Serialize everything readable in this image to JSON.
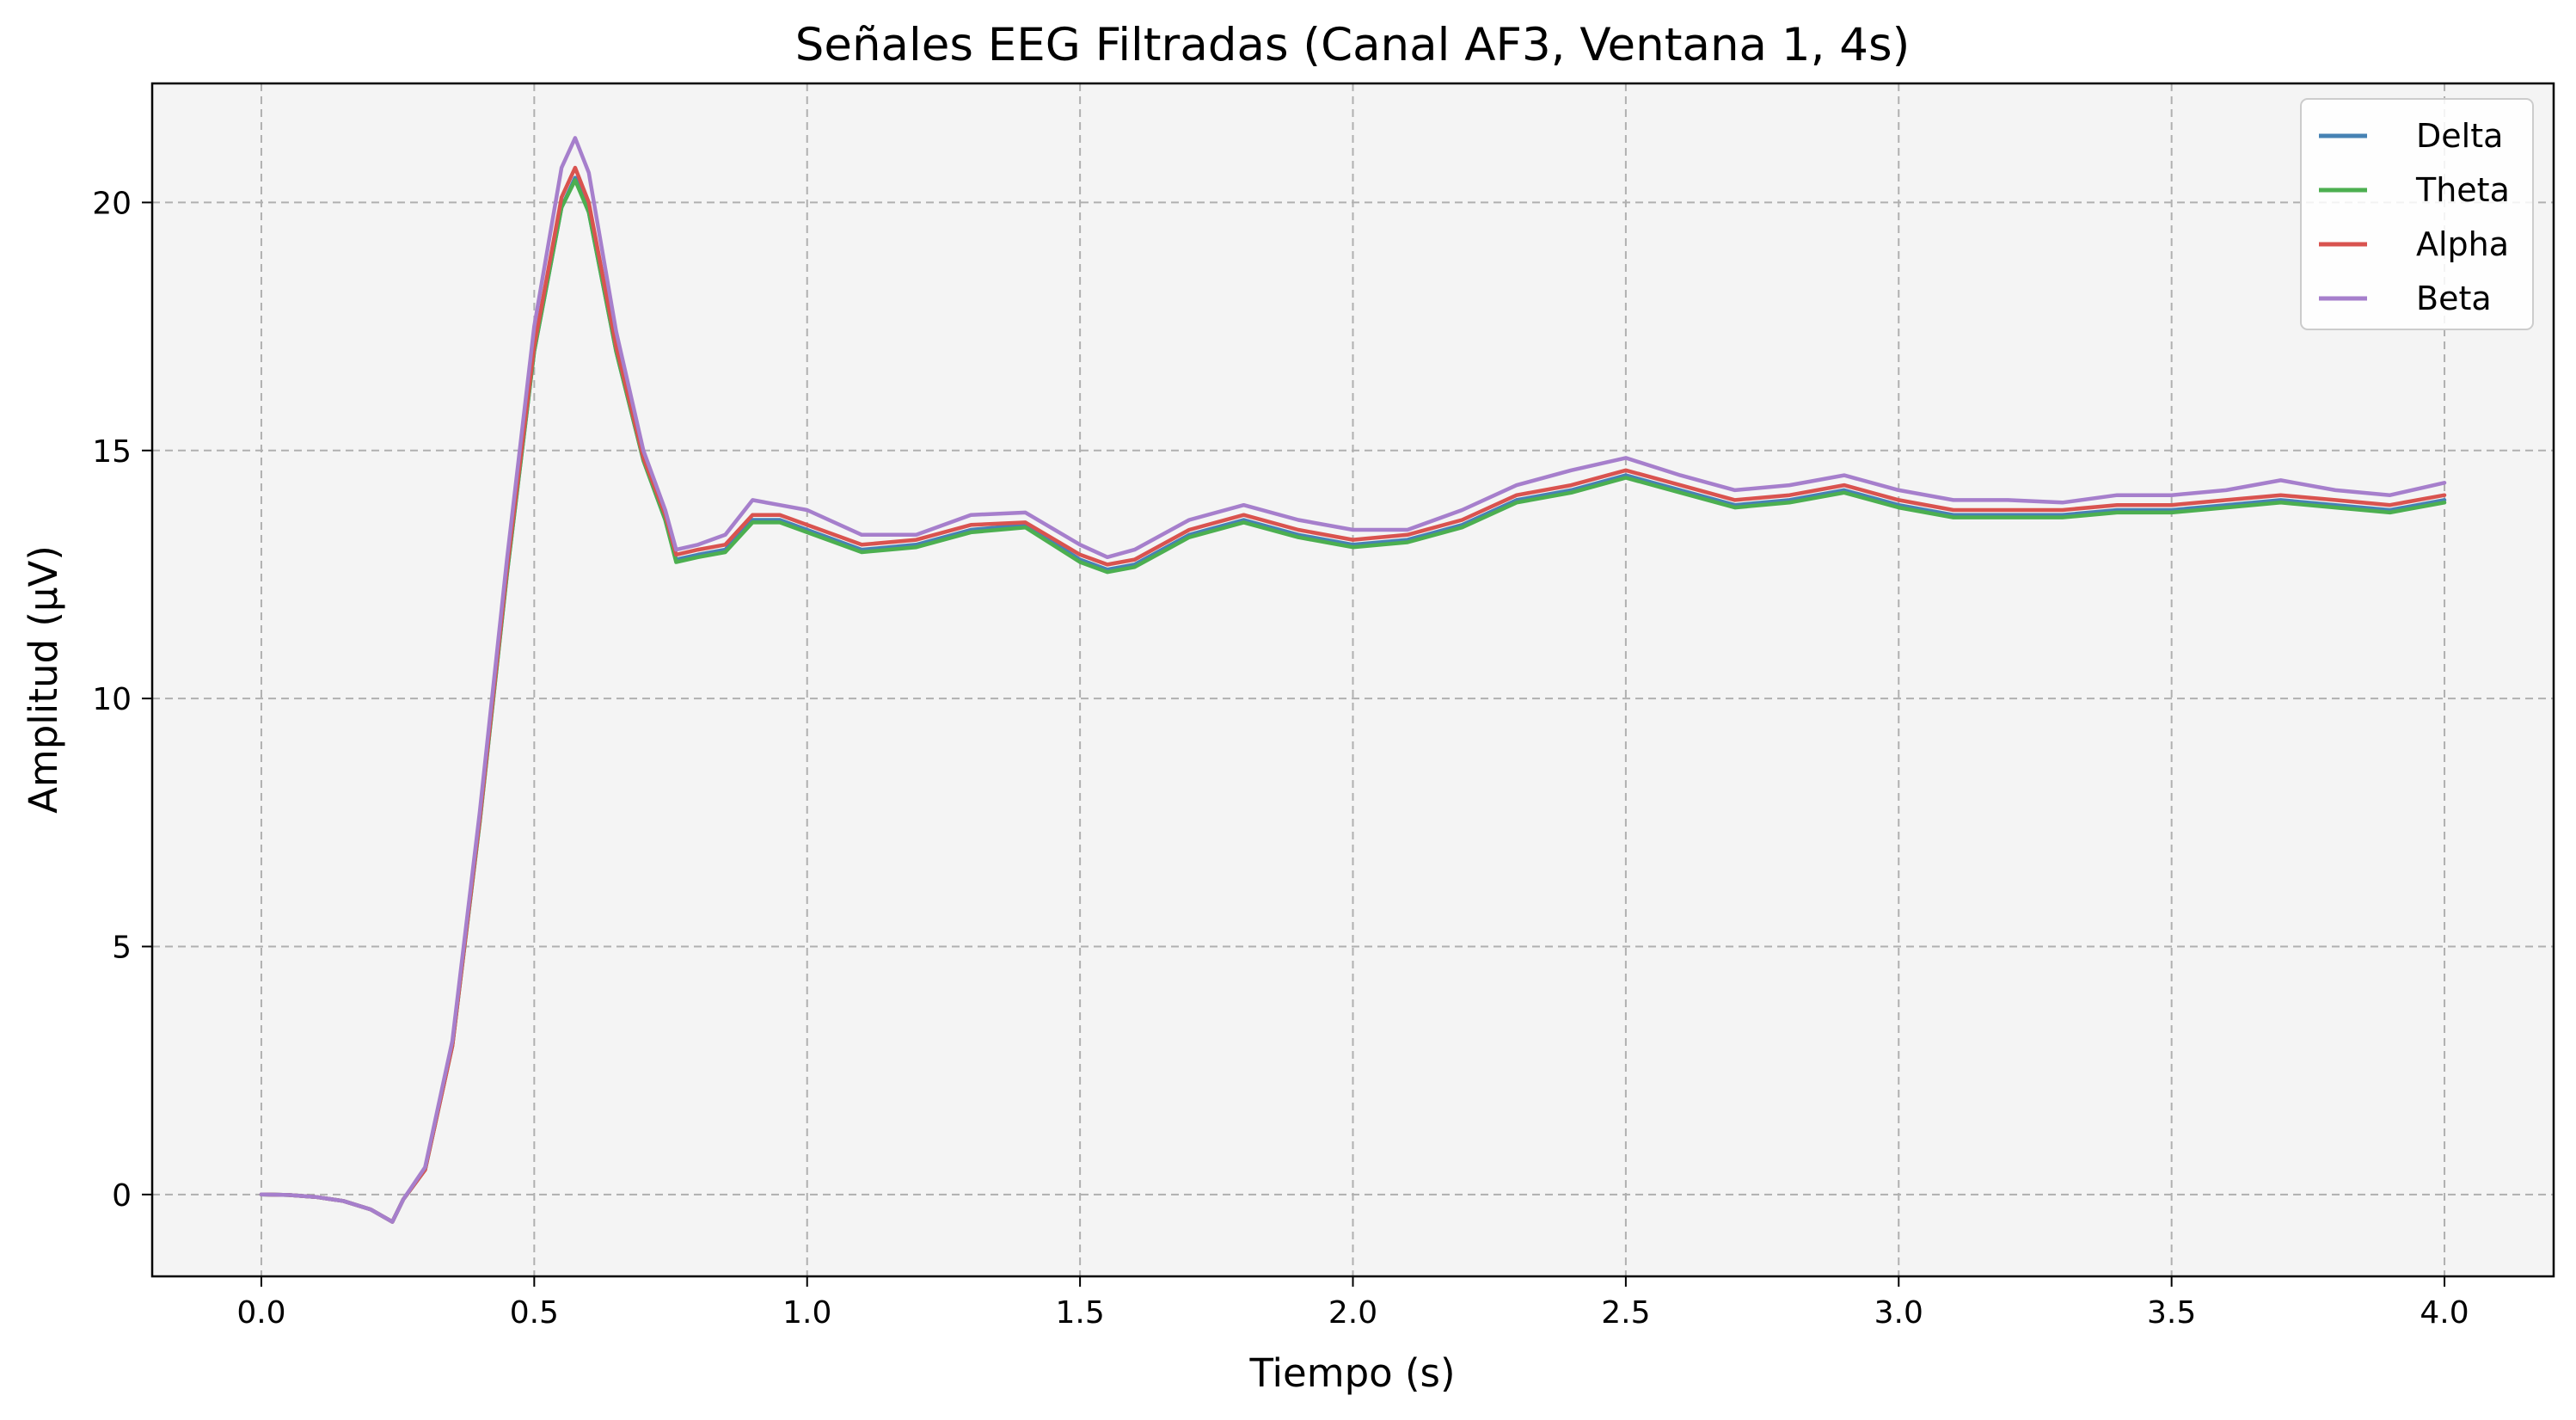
{
  "chart_data": {
    "type": "line",
    "title": "Señales EEG Filtradas (Canal AF3, Ventana 1, 4s)",
    "xlabel": "Tiempo (s)",
    "ylabel": "Amplitud (µV)",
    "xlim": [
      -0.2,
      4.2
    ],
    "ylim": [
      -1.65,
      22.4
    ],
    "x_ticks": [
      "0.0",
      "0.5",
      "1.0",
      "1.5",
      "2.0",
      "2.5",
      "3.0",
      "3.5",
      "4.0"
    ],
    "y_ticks": [
      "0",
      "5",
      "10",
      "15",
      "20"
    ],
    "grid": true,
    "grid_style": "dashed",
    "legend_position": "top-right",
    "background_color": "#f4f4f4",
    "x": [
      0.0,
      0.05,
      0.1,
      0.15,
      0.2,
      0.24,
      0.26,
      0.3,
      0.35,
      0.4,
      0.45,
      0.5,
      0.55,
      0.575,
      0.6,
      0.65,
      0.7,
      0.74,
      0.76,
      0.8,
      0.85,
      0.9,
      0.95,
      1.0,
      1.1,
      1.2,
      1.3,
      1.4,
      1.5,
      1.55,
      1.6,
      1.7,
      1.8,
      1.9,
      2.0,
      2.1,
      2.2,
      2.3,
      2.4,
      2.5,
      2.6,
      2.7,
      2.8,
      2.9,
      3.0,
      3.1,
      3.2,
      3.3,
      3.4,
      3.5,
      3.6,
      3.7,
      3.8,
      3.9,
      4.0
    ],
    "series": [
      {
        "name": "Delta",
        "color": "#4682b4",
        "values": [
          0.0,
          -0.01,
          -0.05,
          -0.13,
          -0.3,
          -0.55,
          -0.1,
          0.5,
          3.0,
          7.5,
          12.5,
          17.0,
          19.9,
          20.5,
          19.8,
          17.0,
          14.8,
          13.6,
          12.8,
          12.9,
          13.0,
          13.6,
          13.6,
          13.4,
          13.0,
          13.1,
          13.4,
          13.5,
          12.8,
          12.6,
          12.7,
          13.3,
          13.6,
          13.3,
          13.1,
          13.2,
          13.5,
          14.0,
          14.2,
          14.5,
          14.2,
          13.9,
          14.0,
          14.2,
          13.9,
          13.7,
          13.7,
          13.7,
          13.8,
          13.8,
          13.9,
          14.0,
          13.9,
          13.8,
          14.0
        ]
      },
      {
        "name": "Theta",
        "color": "#4caf50",
        "values": [
          0.0,
          -0.01,
          -0.05,
          -0.13,
          -0.3,
          -0.55,
          -0.1,
          0.5,
          3.0,
          7.5,
          12.5,
          17.0,
          19.9,
          20.45,
          19.8,
          17.0,
          14.8,
          13.6,
          12.75,
          12.85,
          12.95,
          13.55,
          13.55,
          13.35,
          12.95,
          13.05,
          13.35,
          13.45,
          12.75,
          12.55,
          12.65,
          13.25,
          13.55,
          13.25,
          13.05,
          13.15,
          13.45,
          13.95,
          14.15,
          14.45,
          14.15,
          13.85,
          13.95,
          14.15,
          13.85,
          13.65,
          13.65,
          13.65,
          13.75,
          13.75,
          13.85,
          13.95,
          13.85,
          13.75,
          13.95
        ]
      },
      {
        "name": "Alpha",
        "color": "#d9534f",
        "values": [
          0.0,
          -0.01,
          -0.05,
          -0.13,
          -0.3,
          -0.55,
          -0.1,
          0.5,
          3.0,
          7.55,
          12.6,
          17.1,
          20.1,
          20.7,
          20.0,
          17.1,
          14.85,
          13.7,
          12.9,
          13.0,
          13.1,
          13.7,
          13.7,
          13.5,
          13.1,
          13.2,
          13.5,
          13.55,
          12.9,
          12.7,
          12.8,
          13.4,
          13.7,
          13.4,
          13.2,
          13.3,
          13.6,
          14.1,
          14.3,
          14.6,
          14.3,
          14.0,
          14.1,
          14.3,
          14.0,
          13.8,
          13.8,
          13.8,
          13.9,
          13.9,
          14.0,
          14.1,
          14.0,
          13.9,
          14.1
        ]
      },
      {
        "name": "Beta",
        "color": "#a67fcc",
        "values": [
          0.0,
          -0.01,
          -0.05,
          -0.13,
          -0.3,
          -0.55,
          -0.1,
          0.55,
          3.1,
          7.7,
          12.8,
          17.5,
          20.7,
          21.3,
          20.6,
          17.4,
          15.0,
          13.8,
          13.0,
          13.1,
          13.3,
          14.0,
          13.9,
          13.8,
          13.3,
          13.3,
          13.7,
          13.75,
          13.1,
          12.85,
          13.0,
          13.6,
          13.9,
          13.6,
          13.4,
          13.4,
          13.8,
          14.3,
          14.6,
          14.85,
          14.5,
          14.2,
          14.3,
          14.5,
          14.2,
          14.0,
          14.0,
          13.95,
          14.1,
          14.1,
          14.2,
          14.4,
          14.2,
          14.1,
          14.35
        ]
      }
    ]
  }
}
